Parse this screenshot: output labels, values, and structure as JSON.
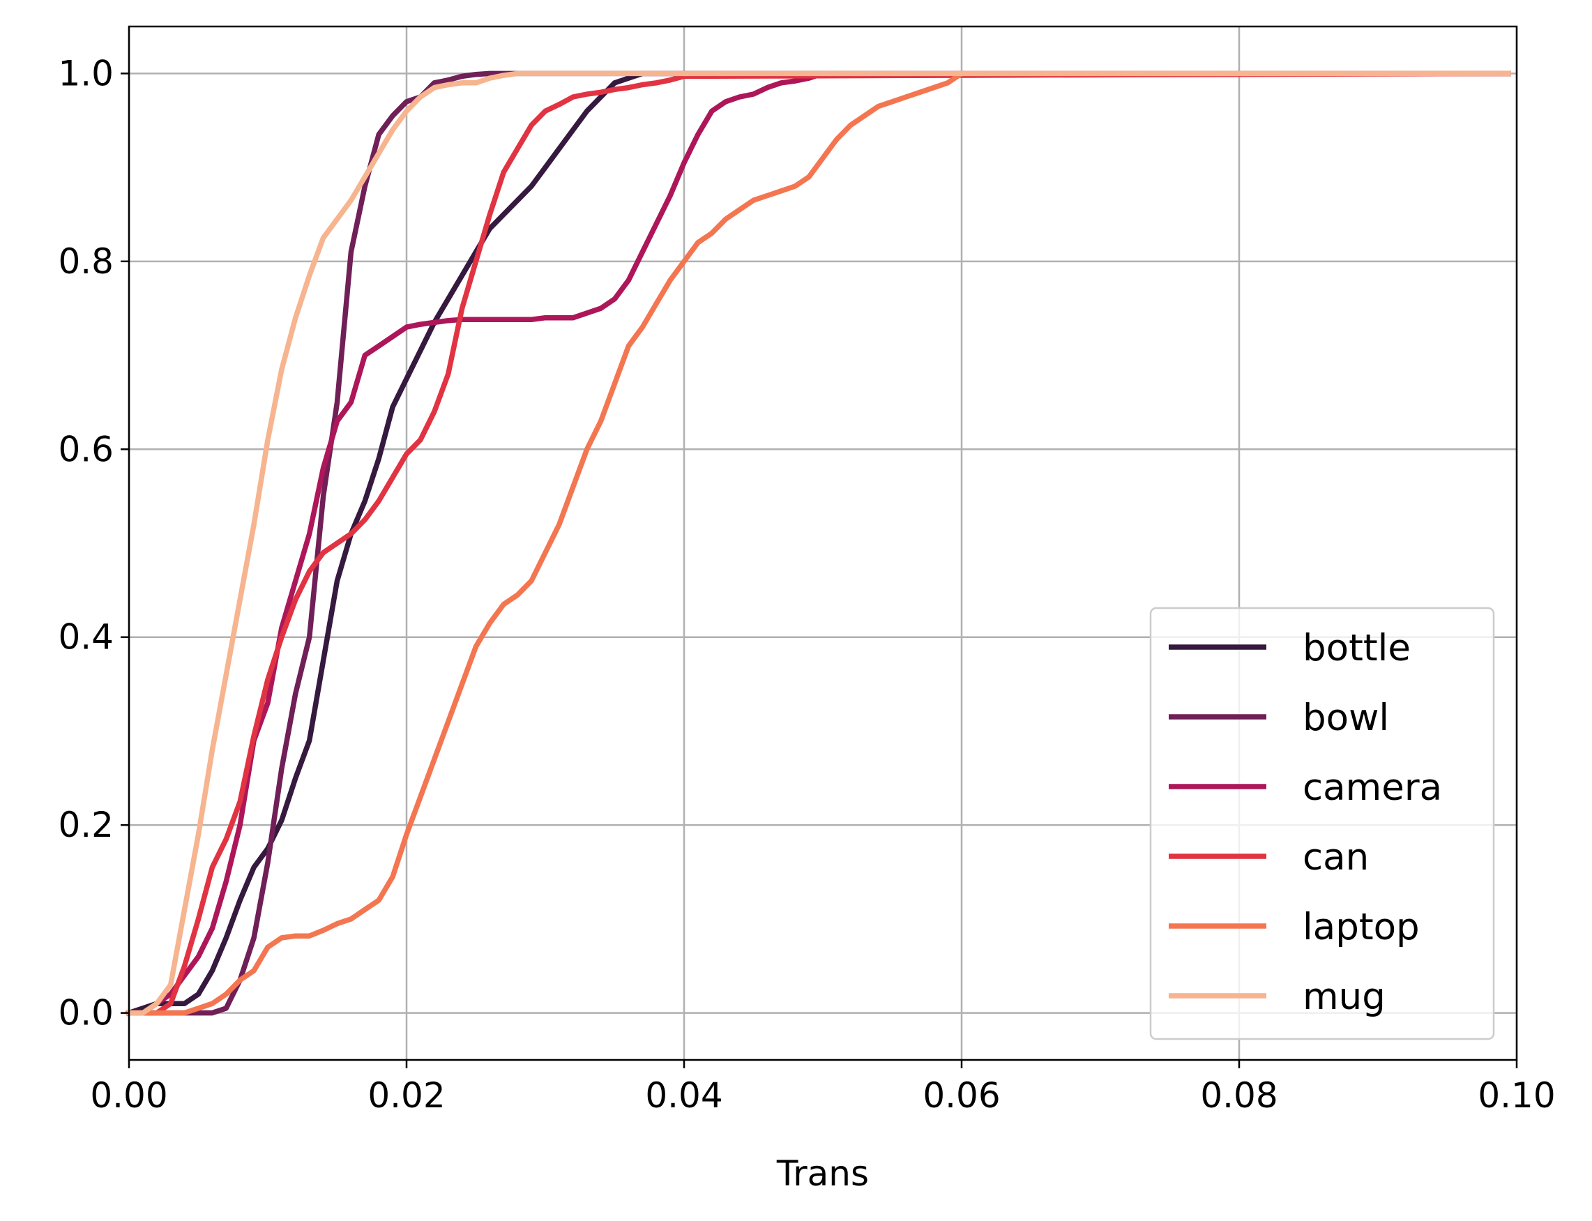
{
  "chart_data": {
    "type": "line",
    "title": "",
    "xlabel": "Trans",
    "ylabel": "",
    "xlim": [
      0.0,
      0.1
    ],
    "ylim": [
      -0.05,
      1.05
    ],
    "grid": true,
    "legend_position": "lower-right",
    "x_ticks": [
      "0.00",
      "0.02",
      "0.04",
      "0.06",
      "0.08",
      "0.10"
    ],
    "y_ticks": [
      "0.0",
      "0.2",
      "0.4",
      "0.6",
      "0.8",
      "1.0"
    ],
    "series": [
      {
        "name": "bottle",
        "color": "#35193e",
        "x": [
          0.0,
          0.002,
          0.004,
          0.005,
          0.006,
          0.007,
          0.008,
          0.009,
          0.01,
          0.011,
          0.012,
          0.013,
          0.014,
          0.015,
          0.016,
          0.017,
          0.018,
          0.019,
          0.02,
          0.021,
          0.022,
          0.023,
          0.024,
          0.025,
          0.026,
          0.027,
          0.028,
          0.029,
          0.03,
          0.031,
          0.032,
          0.033,
          0.034,
          0.035,
          0.036,
          0.037,
          0.038,
          0.04,
          0.0994
        ],
        "y": [
          0.0,
          0.01,
          0.01,
          0.02,
          0.045,
          0.08,
          0.12,
          0.155,
          0.175,
          0.205,
          0.25,
          0.29,
          0.375,
          0.46,
          0.51,
          0.545,
          0.59,
          0.645,
          0.675,
          0.705,
          0.735,
          0.76,
          0.785,
          0.81,
          0.835,
          0.85,
          0.865,
          0.88,
          0.9,
          0.92,
          0.94,
          0.96,
          0.975,
          0.99,
          0.995,
          1.0,
          1.0,
          1.0,
          1.0
        ]
      },
      {
        "name": "bowl",
        "color": "#701f57",
        "x": [
          0.0,
          0.004,
          0.006,
          0.007,
          0.008,
          0.009,
          0.01,
          0.011,
          0.012,
          0.013,
          0.014,
          0.015,
          0.016,
          0.017,
          0.018,
          0.019,
          0.02,
          0.021,
          0.022,
          0.023,
          0.024,
          0.025,
          0.026,
          0.027,
          0.028,
          0.03,
          0.0994
        ],
        "y": [
          0.0,
          0.0,
          0.0,
          0.005,
          0.035,
          0.08,
          0.16,
          0.26,
          0.34,
          0.4,
          0.55,
          0.65,
          0.81,
          0.88,
          0.935,
          0.955,
          0.97,
          0.975,
          0.99,
          0.993,
          0.997,
          0.999,
          1.0,
          1.0,
          1.0,
          1.0,
          1.0
        ]
      },
      {
        "name": "camera",
        "color": "#ad1759",
        "x": [
          0.0,
          0.001,
          0.002,
          0.003,
          0.004,
          0.005,
          0.006,
          0.007,
          0.008,
          0.009,
          0.01,
          0.011,
          0.012,
          0.013,
          0.014,
          0.015,
          0.016,
          0.017,
          0.018,
          0.019,
          0.02,
          0.021,
          0.022,
          0.023,
          0.024,
          0.025,
          0.026,
          0.027,
          0.028,
          0.029,
          0.03,
          0.031,
          0.032,
          0.033,
          0.034,
          0.035,
          0.036,
          0.037,
          0.038,
          0.039,
          0.04,
          0.041,
          0.042,
          0.043,
          0.044,
          0.045,
          0.046,
          0.047,
          0.048,
          0.049,
          0.05,
          0.0994
        ],
        "y": [
          0.0,
          0.0,
          0.01,
          0.02,
          0.04,
          0.06,
          0.09,
          0.14,
          0.2,
          0.29,
          0.33,
          0.41,
          0.46,
          0.51,
          0.58,
          0.63,
          0.65,
          0.7,
          0.71,
          0.72,
          0.73,
          0.733,
          0.735,
          0.737,
          0.738,
          0.738,
          0.738,
          0.738,
          0.738,
          0.738,
          0.74,
          0.74,
          0.74,
          0.745,
          0.75,
          0.76,
          0.78,
          0.81,
          0.84,
          0.87,
          0.905,
          0.935,
          0.96,
          0.97,
          0.975,
          0.978,
          0.985,
          0.99,
          0.992,
          0.995,
          1.0,
          1.0
        ]
      },
      {
        "name": "can",
        "color": "#e13342",
        "x": [
          0.0,
          0.001,
          0.002,
          0.003,
          0.004,
          0.005,
          0.006,
          0.007,
          0.008,
          0.009,
          0.01,
          0.011,
          0.012,
          0.013,
          0.014,
          0.015,
          0.016,
          0.017,
          0.018,
          0.019,
          0.02,
          0.021,
          0.022,
          0.023,
          0.024,
          0.025,
          0.026,
          0.027,
          0.028,
          0.029,
          0.03,
          0.031,
          0.032,
          0.033,
          0.034,
          0.035,
          0.036,
          0.037,
          0.038,
          0.039,
          0.04,
          0.0994
        ],
        "y": [
          0.0,
          0.0,
          0.0,
          0.01,
          0.05,
          0.1,
          0.155,
          0.185,
          0.225,
          0.295,
          0.355,
          0.4,
          0.44,
          0.47,
          0.49,
          0.5,
          0.51,
          0.525,
          0.545,
          0.57,
          0.595,
          0.61,
          0.64,
          0.68,
          0.75,
          0.8,
          0.85,
          0.895,
          0.92,
          0.945,
          0.96,
          0.967,
          0.975,
          0.978,
          0.98,
          0.983,
          0.985,
          0.988,
          0.99,
          0.993,
          0.997,
          1.0
        ]
      },
      {
        "name": "laptop",
        "color": "#f37651",
        "x": [
          0.0,
          0.001,
          0.002,
          0.003,
          0.004,
          0.005,
          0.006,
          0.007,
          0.008,
          0.009,
          0.01,
          0.011,
          0.012,
          0.013,
          0.014,
          0.015,
          0.016,
          0.017,
          0.018,
          0.019,
          0.02,
          0.021,
          0.022,
          0.023,
          0.024,
          0.025,
          0.026,
          0.027,
          0.028,
          0.029,
          0.03,
          0.031,
          0.032,
          0.033,
          0.034,
          0.035,
          0.036,
          0.037,
          0.038,
          0.039,
          0.04,
          0.041,
          0.042,
          0.043,
          0.044,
          0.045,
          0.046,
          0.047,
          0.048,
          0.049,
          0.05,
          0.051,
          0.052,
          0.053,
          0.054,
          0.055,
          0.056,
          0.057,
          0.058,
          0.059,
          0.06,
          0.0994
        ],
        "y": [
          0.0,
          0.0,
          0.0,
          0.0,
          0.0,
          0.005,
          0.01,
          0.02,
          0.035,
          0.045,
          0.07,
          0.08,
          0.082,
          0.082,
          0.088,
          0.095,
          0.1,
          0.11,
          0.12,
          0.145,
          0.19,
          0.23,
          0.27,
          0.31,
          0.35,
          0.39,
          0.415,
          0.435,
          0.445,
          0.46,
          0.49,
          0.52,
          0.56,
          0.6,
          0.63,
          0.67,
          0.71,
          0.73,
          0.755,
          0.78,
          0.8,
          0.82,
          0.83,
          0.845,
          0.855,
          0.865,
          0.87,
          0.875,
          0.88,
          0.89,
          0.91,
          0.93,
          0.945,
          0.955,
          0.965,
          0.97,
          0.975,
          0.98,
          0.985,
          0.99,
          1.0,
          1.0
        ]
      },
      {
        "name": "mug",
        "color": "#f6b48f",
        "x": [
          0.0,
          0.001,
          0.002,
          0.003,
          0.004,
          0.005,
          0.006,
          0.007,
          0.008,
          0.009,
          0.01,
          0.011,
          0.012,
          0.013,
          0.014,
          0.015,
          0.016,
          0.017,
          0.018,
          0.019,
          0.02,
          0.021,
          0.022,
          0.023,
          0.024,
          0.025,
          0.026,
          0.027,
          0.028,
          0.03,
          0.0994
        ],
        "y": [
          0.0,
          0.0,
          0.01,
          0.03,
          0.11,
          0.19,
          0.28,
          0.36,
          0.44,
          0.52,
          0.61,
          0.685,
          0.74,
          0.785,
          0.825,
          0.845,
          0.865,
          0.89,
          0.915,
          0.94,
          0.96,
          0.975,
          0.985,
          0.988,
          0.99,
          0.99,
          0.995,
          0.998,
          1.0,
          1.0,
          1.0
        ]
      }
    ]
  }
}
